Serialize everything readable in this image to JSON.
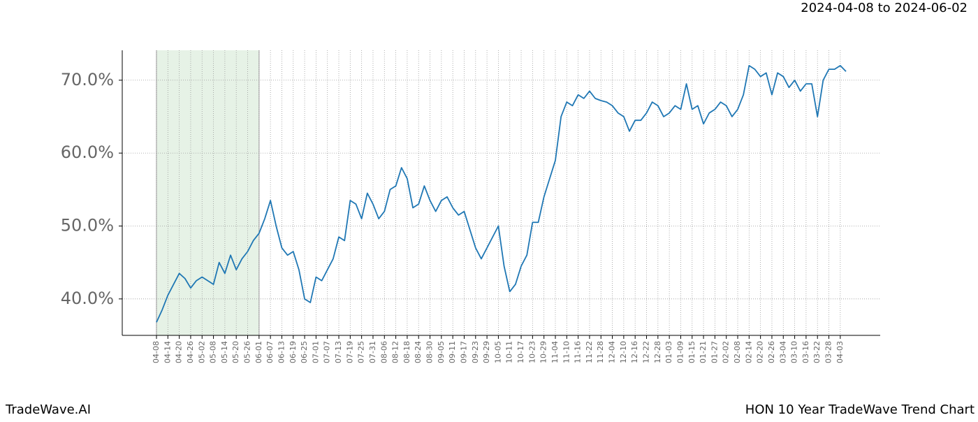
{
  "chart_data": {
    "type": "line",
    "subtitle": "2024-04-08 to 2024-06-02",
    "footer_left": "TradeWave.AI",
    "footer_right": "HON 10 Year TradeWave Trend Chart",
    "categories": [
      "04-08",
      null,
      "04-14",
      null,
      "04-20",
      null,
      "04-26",
      null,
      "05-02",
      null,
      "05-08",
      null,
      "05-14",
      null,
      "05-20",
      null,
      "05-26",
      null,
      "06-01",
      null,
      "06-07",
      null,
      "06-13",
      null,
      "06-19",
      null,
      "06-25",
      null,
      "07-01",
      null,
      "07-07",
      null,
      "07-13",
      null,
      "07-19",
      null,
      "07-25",
      null,
      "07-31",
      null,
      "08-06",
      null,
      "08-12",
      null,
      "08-18",
      null,
      "08-24",
      null,
      "08-30",
      null,
      "09-05",
      null,
      "09-11",
      null,
      "09-17",
      null,
      "09-23",
      null,
      "09-29",
      null,
      "10-05",
      null,
      "10-11",
      null,
      "10-17",
      null,
      "10-23",
      null,
      "10-29",
      null,
      "11-04",
      null,
      "11-10",
      null,
      "11-16",
      null,
      "11-22",
      null,
      "11-28",
      null,
      "12-04",
      null,
      "12-10",
      null,
      "12-16",
      null,
      "12-22",
      null,
      "12-28",
      null,
      "01-03",
      null,
      "01-09",
      null,
      "01-15",
      null,
      "01-21",
      null,
      "01-27",
      null,
      "02-02",
      null,
      "02-08",
      null,
      "02-14",
      null,
      "02-20",
      null,
      "02-26",
      null,
      "03-04",
      null,
      "03-10",
      null,
      "03-16",
      null,
      "03-22",
      null,
      "03-28",
      null,
      "04-03",
      null
    ],
    "values": [
      36.8,
      38.5,
      40.5,
      42.0,
      43.5,
      42.8,
      41.5,
      42.5,
      43.0,
      42.5,
      42.0,
      45.0,
      43.5,
      46.0,
      44.0,
      45.5,
      46.5,
      48.0,
      49.0,
      51.0,
      53.5,
      50.0,
      47.0,
      46.0,
      46.5,
      44.0,
      40.0,
      39.5,
      43.0,
      42.5,
      44.0,
      45.5,
      48.5,
      48.0,
      53.5,
      53.0,
      51.0,
      54.5,
      53.0,
      51.0,
      52.0,
      55.0,
      55.5,
      58.0,
      56.5,
      52.5,
      53.0,
      55.5,
      53.5,
      52.0,
      53.5,
      54.0,
      52.5,
      51.5,
      52.0,
      49.5,
      47.0,
      45.5,
      47.0,
      48.5,
      50.0,
      44.5,
      41.0,
      42.0,
      44.5,
      46.0,
      50.5,
      50.5,
      54.0,
      56.5,
      59.0,
      65.0,
      67.0,
      66.5,
      68.0,
      67.5,
      68.5,
      67.5,
      67.2,
      67.0,
      66.5,
      65.5,
      65.0,
      63.0,
      64.5,
      64.5,
      65.5,
      67.0,
      66.5,
      65.0,
      65.5,
      66.5,
      66.0,
      69.5,
      66.0,
      66.5,
      64.0,
      65.5,
      66.0,
      67.0,
      66.5,
      65.0,
      66.0,
      68.0,
      72.0,
      71.5,
      70.5,
      71.0,
      68.0,
      71.0,
      70.5,
      69.0,
      70.0,
      68.5,
      69.5,
      69.5,
      65.0,
      70.0,
      71.5,
      71.5,
      72.0,
      71.2
    ],
    "color": "#1f77b4",
    "shade_range": [
      0,
      18
    ],
    "shade_color": "#e6f2e6",
    "ylim": [
      35.0,
      74.1
    ],
    "yticks": [
      {
        "value": 40,
        "label": "40.0%"
      },
      {
        "value": 50,
        "label": "50.0%"
      },
      {
        "value": 60,
        "label": "60.0%"
      },
      {
        "value": 70,
        "label": "70.0%"
      }
    ],
    "grid": true
  }
}
